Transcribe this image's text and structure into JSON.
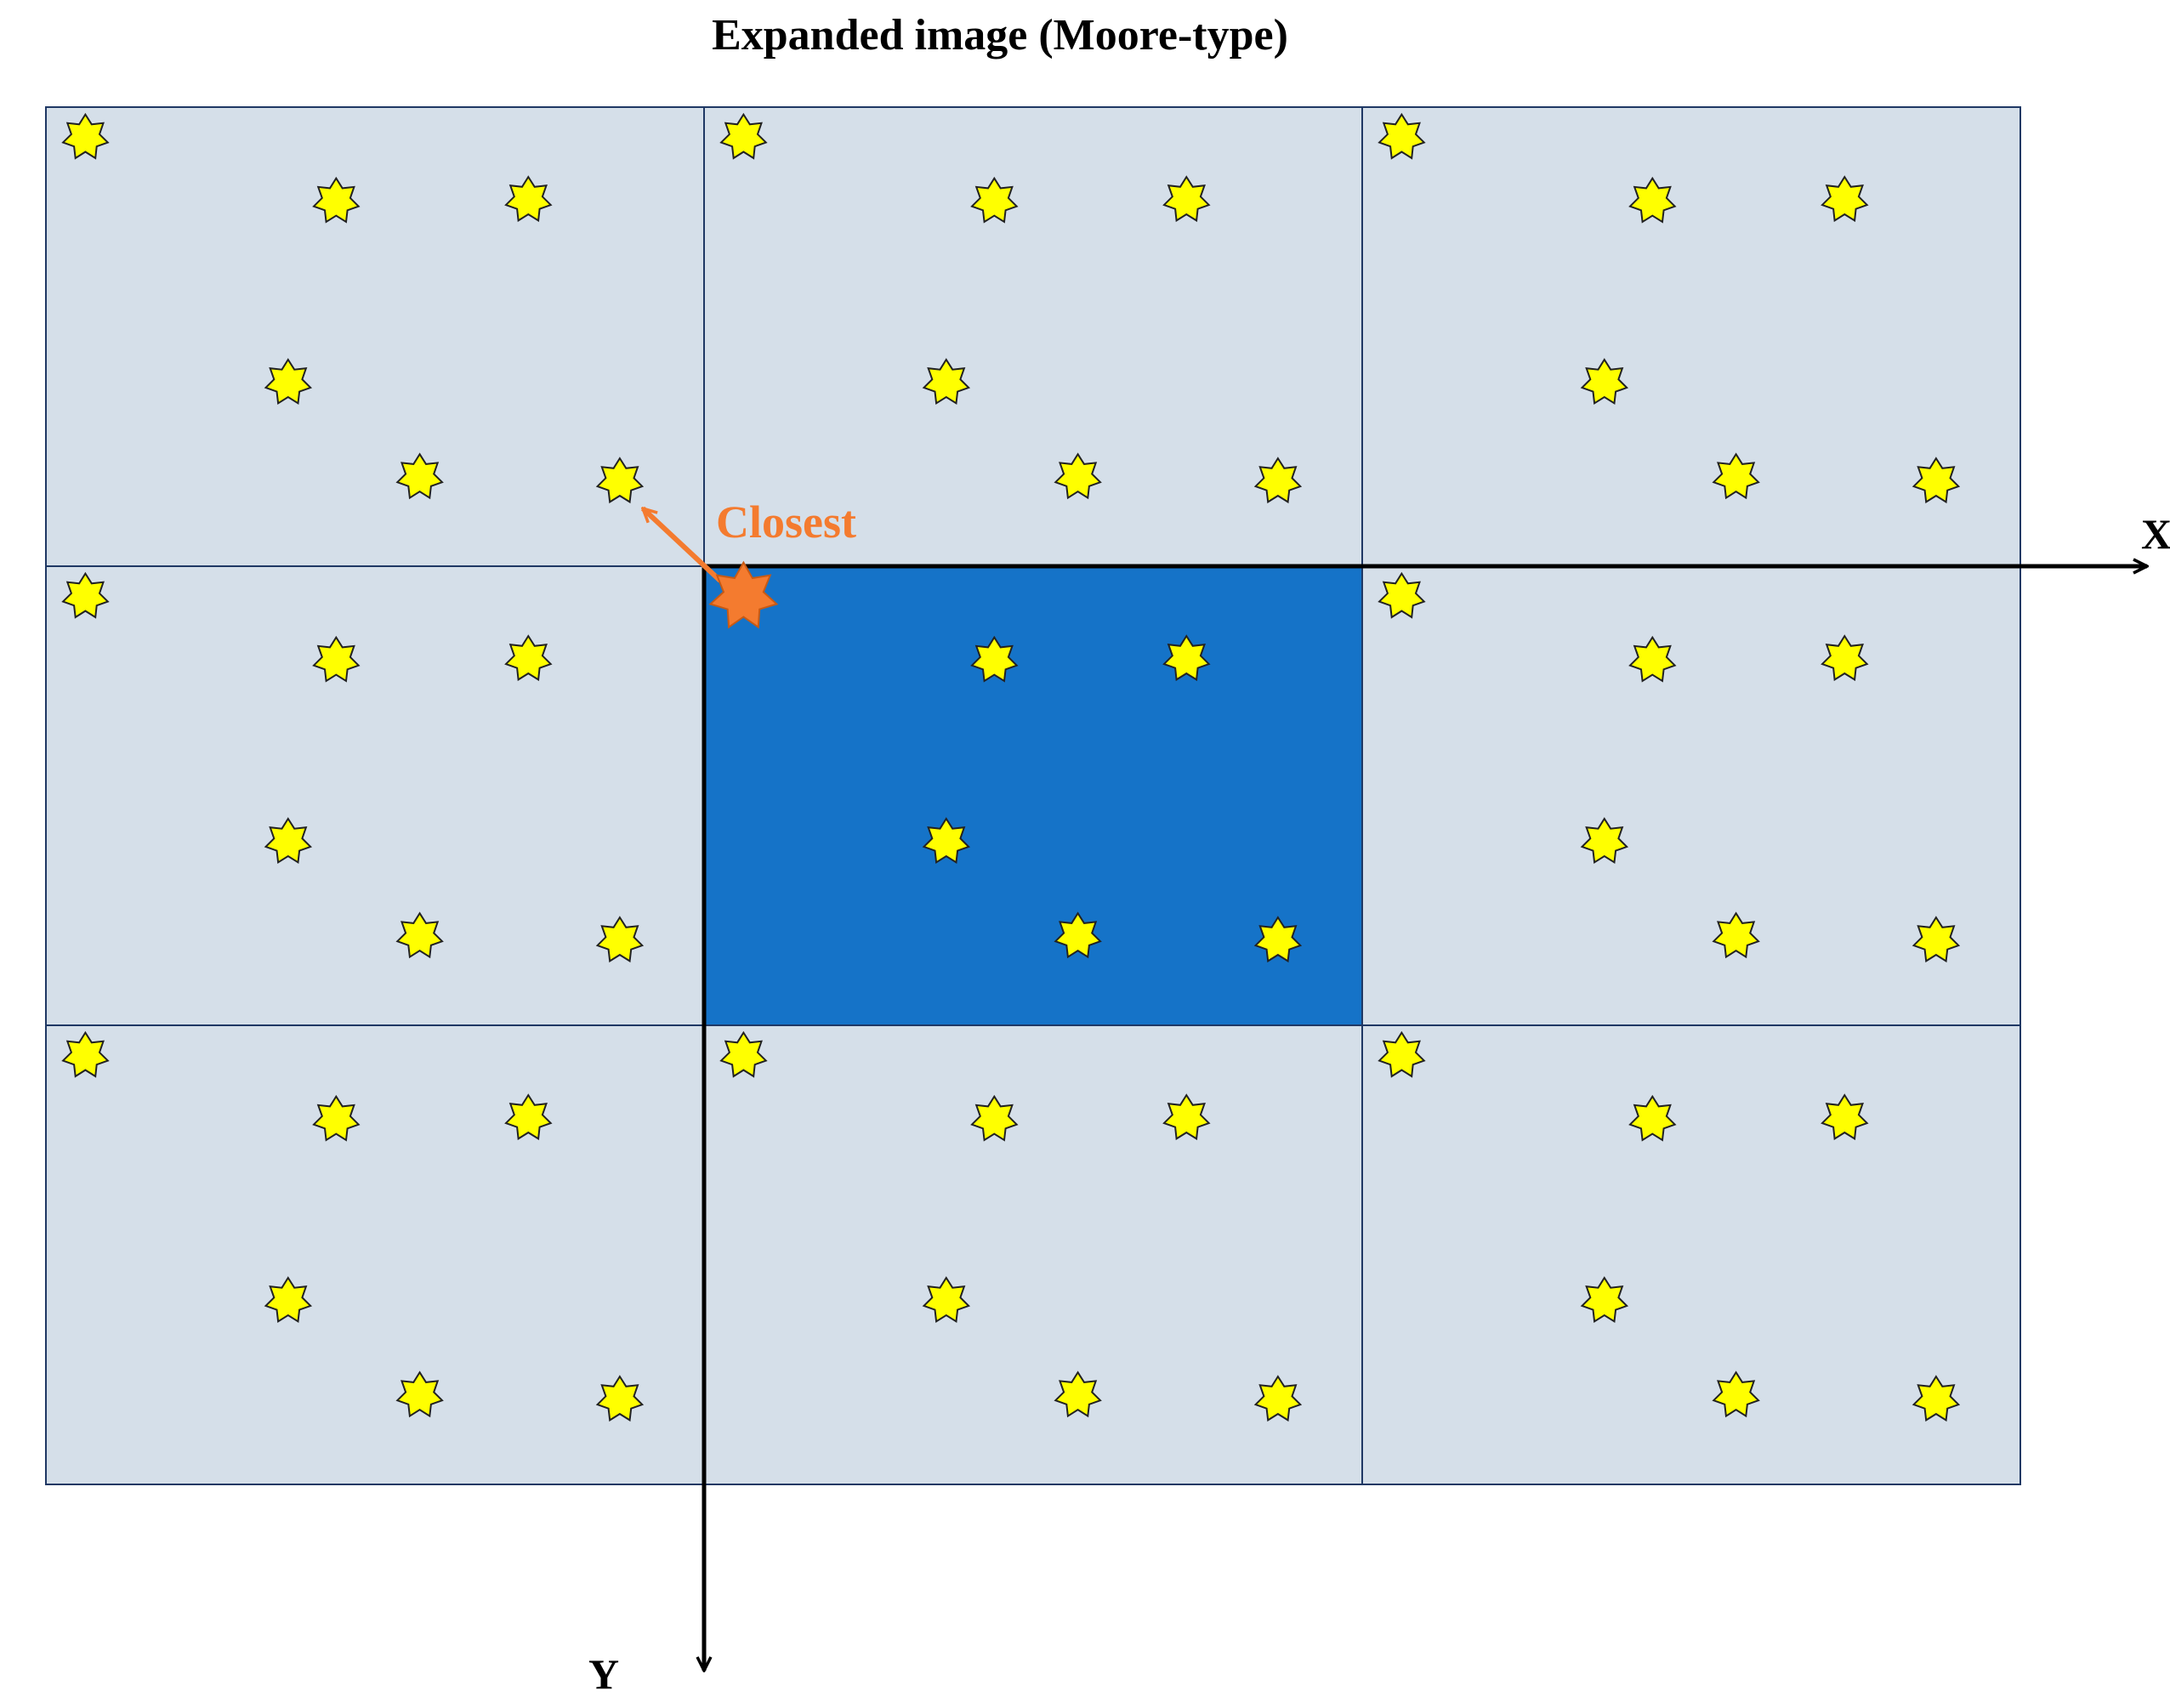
{
  "title": "Expanded image (Moore-type)",
  "axes": {
    "x_label": "X",
    "y_label": "Y"
  },
  "closest_label": "Closest",
  "grid": {
    "rows": 3,
    "cols": 3,
    "center": [
      1,
      1
    ]
  },
  "colors": {
    "tile_fill": "#d5dfe9",
    "tile_stroke": "#1f3864",
    "center_fill": "#1573c8",
    "star_fill": "#ffff00",
    "star_stroke": "#222222",
    "closest_fill": "#f47b2f",
    "closest_color": "#f47b2f",
    "axis_color": "#000000"
  },
  "stars_per_tile": [
    {
      "u": 0.06,
      "v": 0.066
    },
    {
      "u": 0.441,
      "v": 0.205
    },
    {
      "u": 0.733,
      "v": 0.202
    },
    {
      "u": 0.368,
      "v": 0.6
    },
    {
      "u": 0.568,
      "v": 0.806
    },
    {
      "u": 0.872,
      "v": 0.815
    }
  ]
}
